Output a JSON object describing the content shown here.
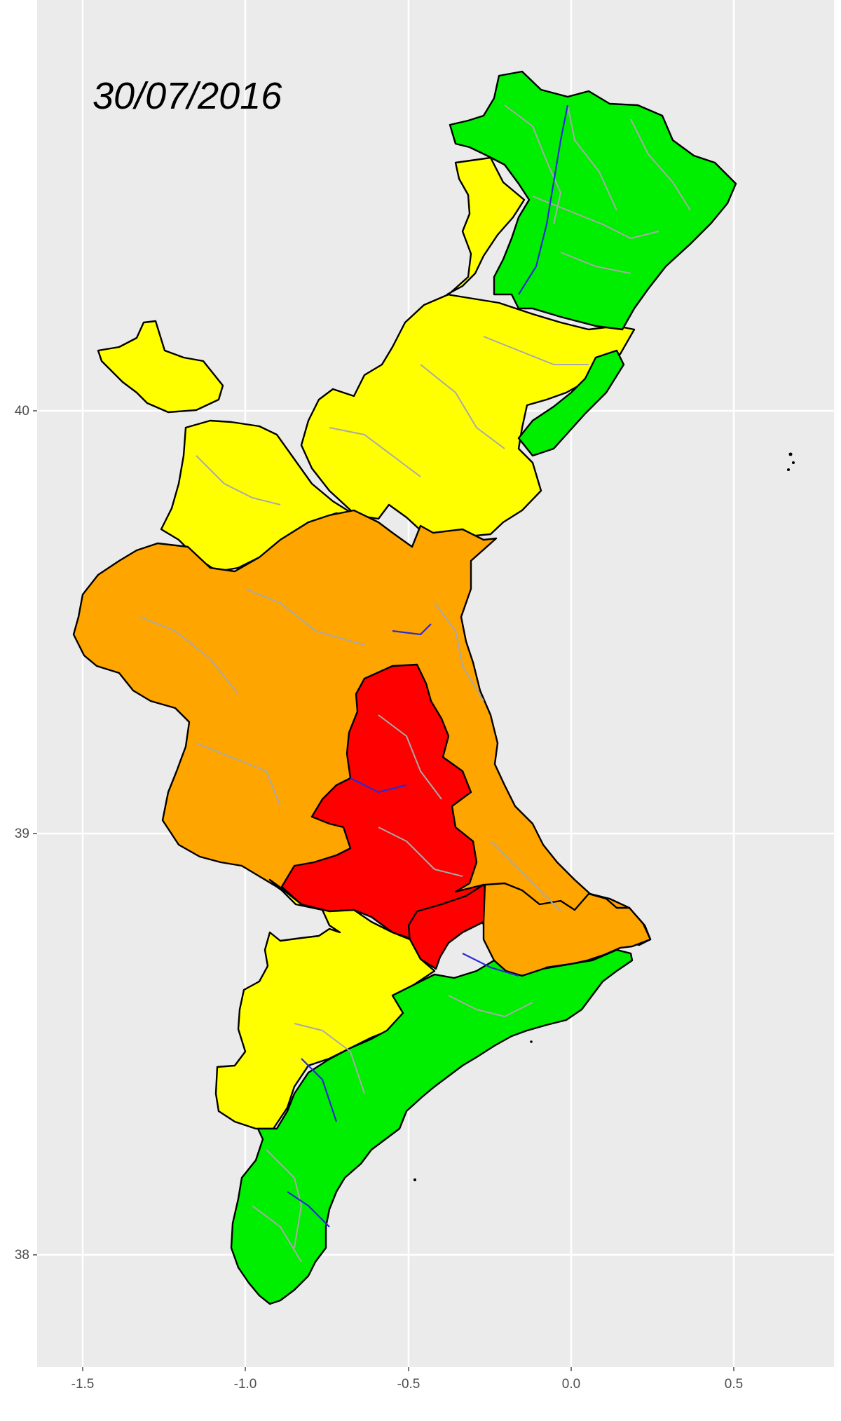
{
  "map": {
    "date_label": "30/07/2016",
    "x_ticks": [
      "-1.5",
      "-1.0",
      "-0.5",
      "0.0",
      "0.5"
    ],
    "y_ticks": [
      "40",
      "39",
      "38"
    ],
    "colors": {
      "panel_background": "#ebebeb",
      "grid": "#ffffff",
      "green": "#00ee00",
      "yellow": "#ffff00",
      "orange": "#ffa500",
      "red": "#ff0000",
      "municipal_border": "#a9a9a9",
      "district_border": "#0000cd"
    }
  }
}
